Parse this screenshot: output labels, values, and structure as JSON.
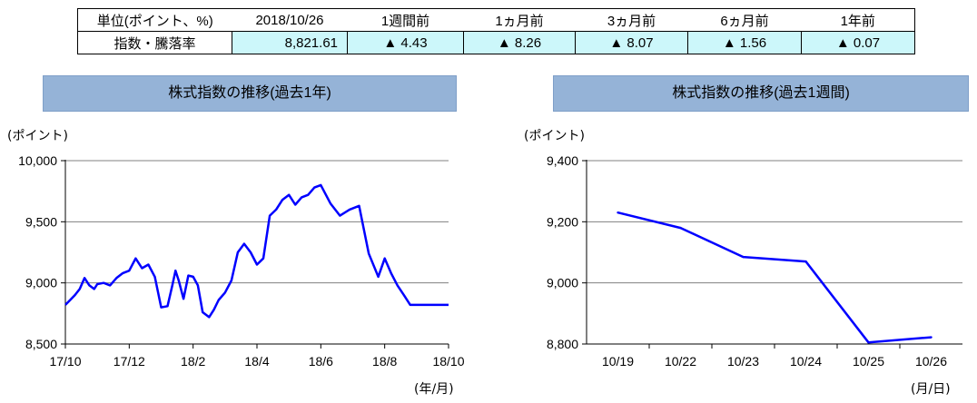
{
  "summary": {
    "headers": [
      "単位(ポイント、%)",
      "2018/10/26",
      "1週間前",
      "1ヵ月前",
      "3ヵ月前",
      "6ヵ月前",
      "1年前"
    ],
    "row_label": "指数・騰落率",
    "values": [
      "8,821.61",
      "▲ 4.43",
      "▲ 8.26",
      "▲ 8.07",
      "▲ 1.56",
      "▲ 0.07"
    ]
  },
  "colors": {
    "line": "#0000ff",
    "title_bg": "#95b3d7",
    "value_bg": "#ccf7fa",
    "grid": "#808080"
  },
  "chart_data": [
    {
      "type": "line",
      "title": "株式指数の推移(過去1年)",
      "ylabel": "(ポイント)",
      "xlabel": "(年/月)",
      "ylim": [
        8500,
        10000
      ],
      "yticks": [
        8500,
        9000,
        9500,
        10000
      ],
      "ytick_labels": [
        "8,500",
        "9,000",
        "9,500",
        "10,000"
      ],
      "xtick_labels": [
        "17/10",
        "17/12",
        "18/2",
        "18/4",
        "18/6",
        "18/8",
        "18/10"
      ],
      "xtick_positions": [
        0,
        2,
        4,
        6,
        8,
        10,
        12
      ],
      "x_range": [
        0,
        12
      ],
      "grid": true,
      "series": [
        {
          "x": [
            0.0,
            0.15,
            0.3,
            0.45,
            0.6,
            0.75,
            0.9,
            1.0,
            1.2,
            1.4,
            1.6,
            1.8,
            2.0,
            2.2,
            2.4,
            2.6,
            2.8,
            3.0,
            3.2,
            3.35,
            3.45,
            3.55,
            3.7,
            3.85,
            4.0,
            4.15,
            4.3,
            4.5,
            4.65,
            4.8,
            5.0,
            5.2,
            5.4,
            5.6,
            5.8,
            6.0,
            6.2,
            6.4,
            6.6,
            6.8,
            7.0,
            7.2,
            7.4,
            7.6,
            7.8,
            8.0,
            8.3,
            8.6,
            8.9,
            9.2,
            9.5,
            9.8,
            10.0,
            10.2,
            10.4,
            10.6,
            10.8,
            11.0,
            11.2,
            11.4,
            11.6,
            11.8,
            12.0
          ],
          "y": [
            8820,
            8860,
            8900,
            8950,
            9040,
            8980,
            8950,
            8990,
            9000,
            8980,
            9040,
            9080,
            9100,
            9200,
            9120,
            9150,
            9050,
            8800,
            8810,
            8980,
            9100,
            9020,
            8870,
            9060,
            9050,
            8980,
            8760,
            8720,
            8780,
            8860,
            8920,
            9020,
            9250,
            9320,
            9250,
            9150,
            9200,
            9550,
            9600,
            9680,
            9720,
            9640,
            9700,
            9720,
            9780,
            9800,
            9650,
            9550,
            9600,
            9630,
            9240,
            9050,
            9200,
            9080,
            8980,
            8900,
            8820,
            8820,
            8820,
            8820,
            8820,
            8820,
            8820
          ]
        }
      ]
    },
    {
      "type": "line",
      "title": "株式指数の推移(過去1週間)",
      "ylabel": "(ポイント)",
      "xlabel": "(月/日)",
      "ylim": [
        8800,
        9400
      ],
      "yticks": [
        8800,
        9000,
        9200,
        9400
      ],
      "ytick_labels": [
        "8,800",
        "9,000",
        "9,200",
        "9,400"
      ],
      "categories": [
        "10/19",
        "10/22",
        "10/23",
        "10/24",
        "10/25",
        "10/26"
      ],
      "grid": true,
      "series": [
        {
          "values": [
            9230,
            9180,
            9085,
            9070,
            8805,
            8822
          ]
        }
      ]
    }
  ]
}
